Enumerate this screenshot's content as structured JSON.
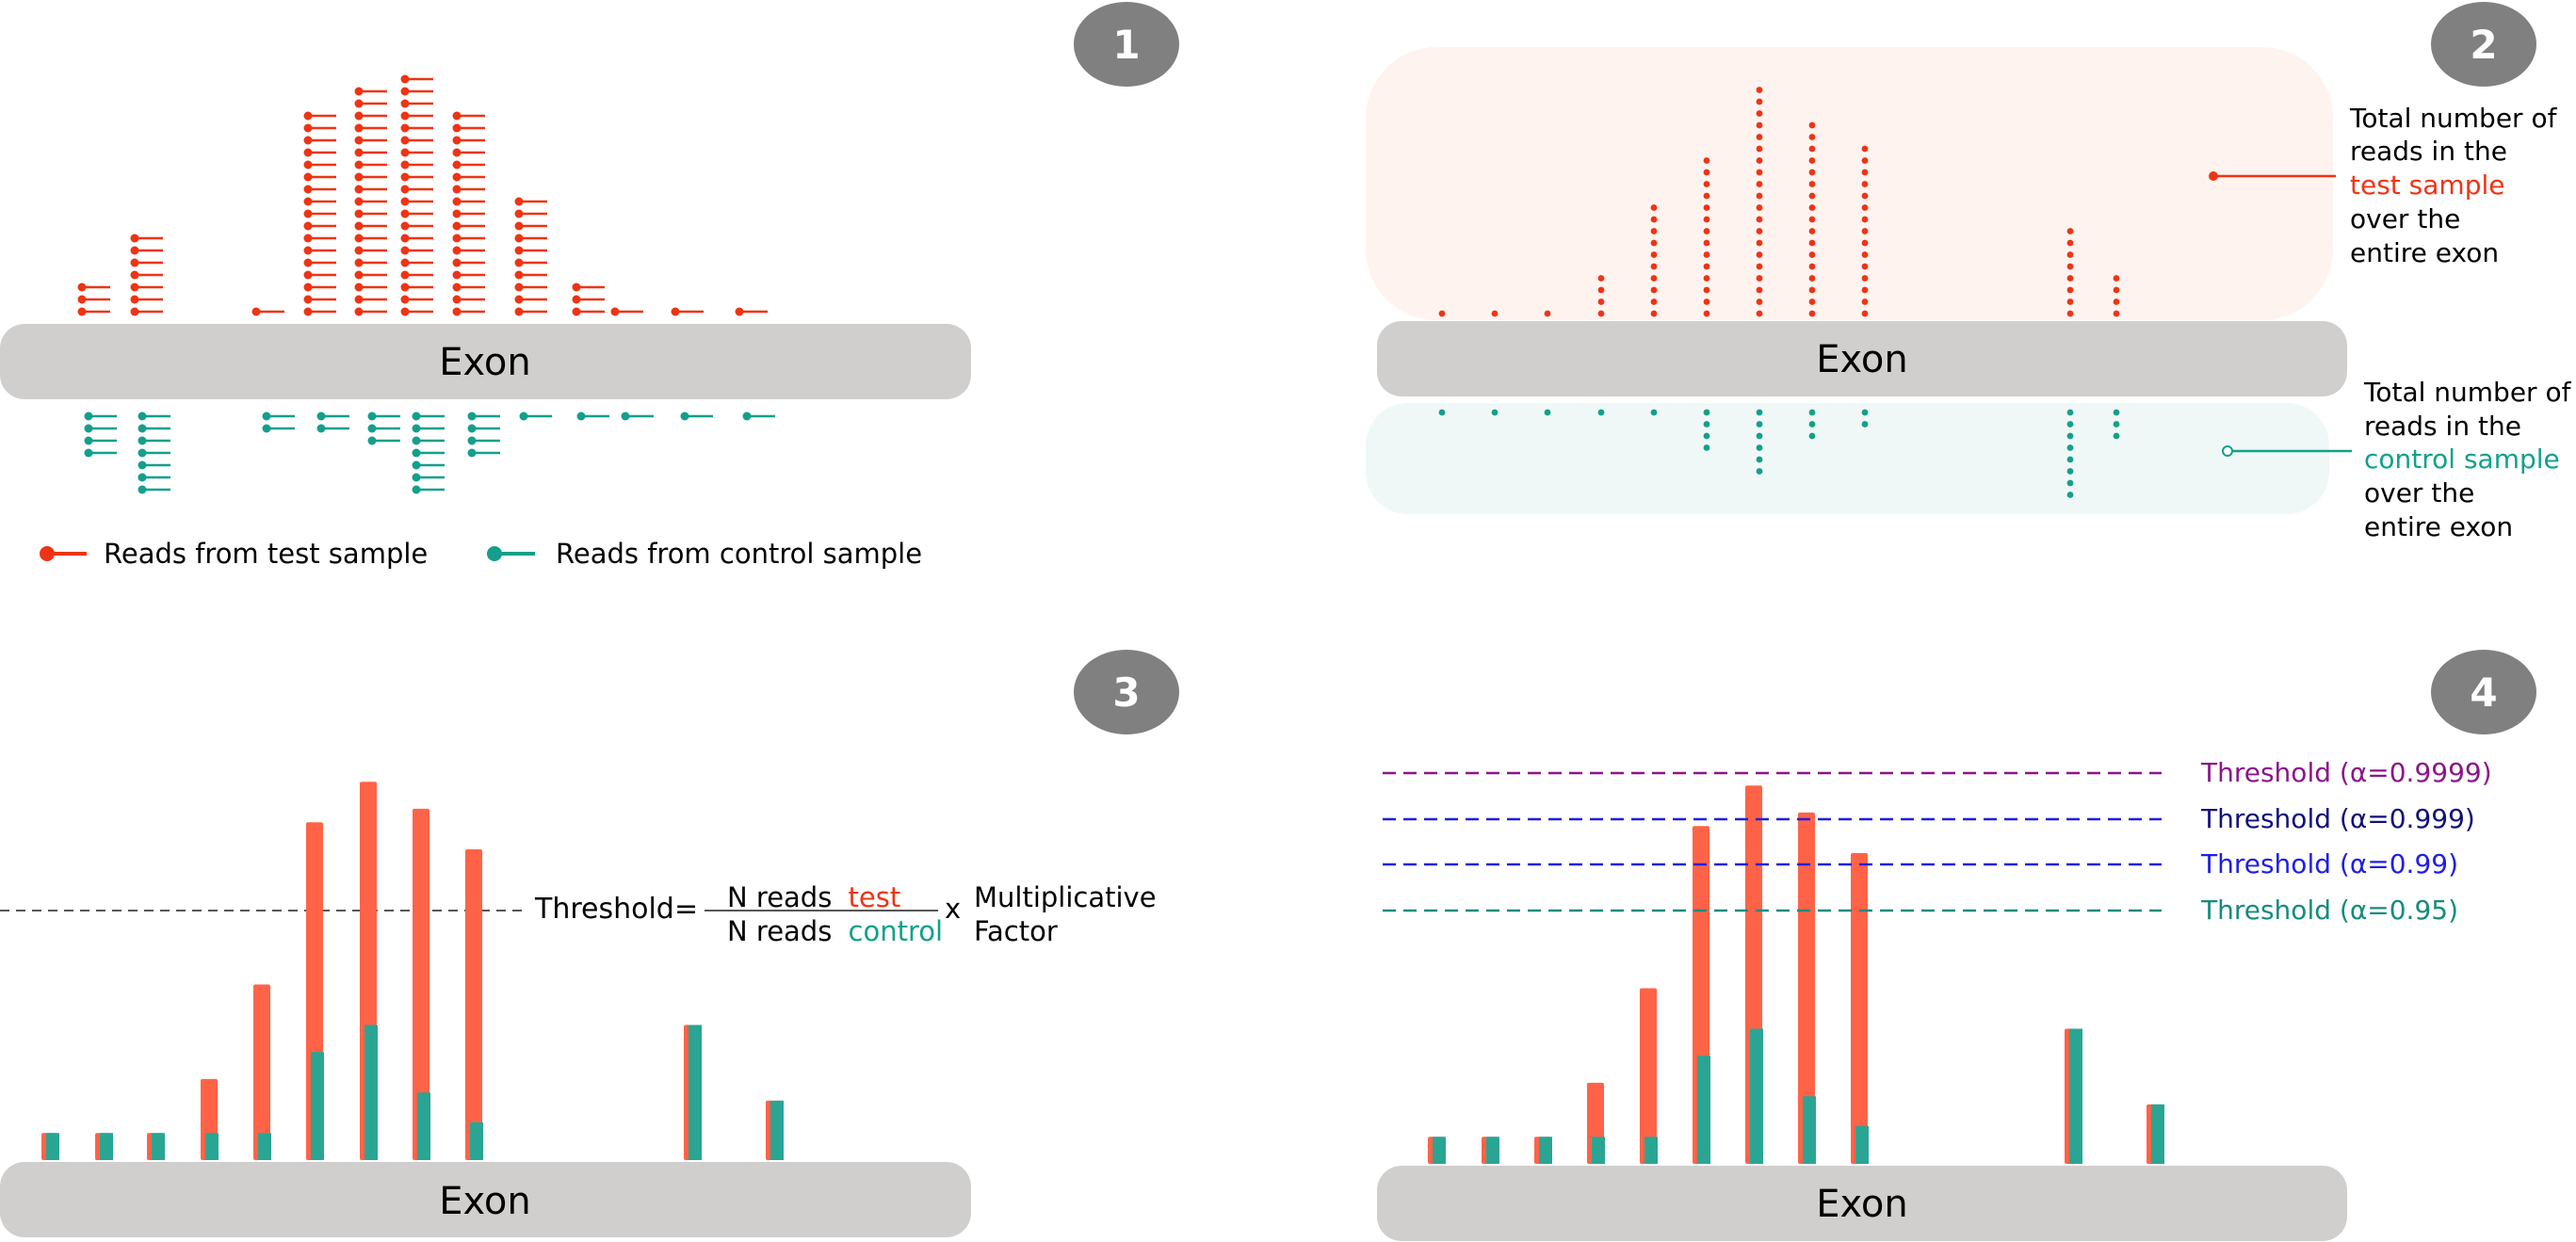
{
  "colors": {
    "test": "#ee3414",
    "control": "#12a08c",
    "bar_test": "#ff6347",
    "bar_control": "#2aa593",
    "exon": "#d0cfce",
    "badge": "#808080",
    "test_band": "#fff3f0",
    "control_band": "#eff8f6",
    "dash_gray": "#555555"
  },
  "panels": [
    {
      "number": "1"
    },
    {
      "number": "2"
    },
    {
      "number": "3"
    },
    {
      "number": "4"
    }
  ],
  "exon_label": "Exon",
  "legend": {
    "test": "Reads from test sample",
    "control": "Reads from control sample"
  },
  "panel2": {
    "test_note": [
      "Total number of",
      "reads in the",
      "test sample",
      "over the",
      "entire exon"
    ],
    "control_note": [
      "Total number of",
      "reads in the",
      "control sample",
      "over the",
      "entire exon"
    ]
  },
  "panel3": {
    "threshold_word": "Threshold",
    "equals": "=",
    "numerator_prefix": "N reads",
    "numerator_hl": "test",
    "denominator_prefix": "N reads",
    "denominator_hl": "control",
    "times": "x",
    "factor_line1": "Multiplicative",
    "factor_line2": "Factor"
  },
  "panel4": {
    "thresholds": [
      {
        "label": "Threshold (α=0.9999)",
        "color": "#8b158b"
      },
      {
        "label": "Threshold (α=0.999)",
        "color": "#10107a"
      },
      {
        "label": "Threshold (α=0.99)",
        "color": "#1e1ee8"
      },
      {
        "label": "Threshold (α=0.95)",
        "color": "#168b7e"
      }
    ]
  },
  "read_columns": {
    "test_counts": [
      3,
      7,
      1,
      17,
      19,
      20,
      17,
      10,
      3,
      1,
      1,
      1
    ],
    "control_counts": [
      4,
      7,
      2,
      2,
      3,
      7,
      4,
      1,
      1,
      1,
      1,
      1
    ]
  },
  "dot_columns": {
    "test_counts": [
      1,
      1,
      1,
      4,
      10,
      14,
      20,
      17,
      15,
      0,
      0,
      0,
      0,
      8,
      4
    ],
    "control_counts": [
      1,
      1,
      1,
      1,
      1,
      4,
      6,
      3,
      2,
      0,
      0,
      0,
      0,
      8,
      3
    ]
  },
  "bar_columns": {
    "test_values": [
      1,
      1,
      1,
      3,
      6.5,
      12.5,
      14,
      13,
      11.5,
      0,
      0,
      0,
      0,
      5,
      2.2
    ],
    "control_values": [
      1,
      1,
      1,
      1,
      1,
      4,
      5,
      2.5,
      1.4,
      0,
      0,
      0,
      0,
      5,
      2.2
    ]
  }
}
